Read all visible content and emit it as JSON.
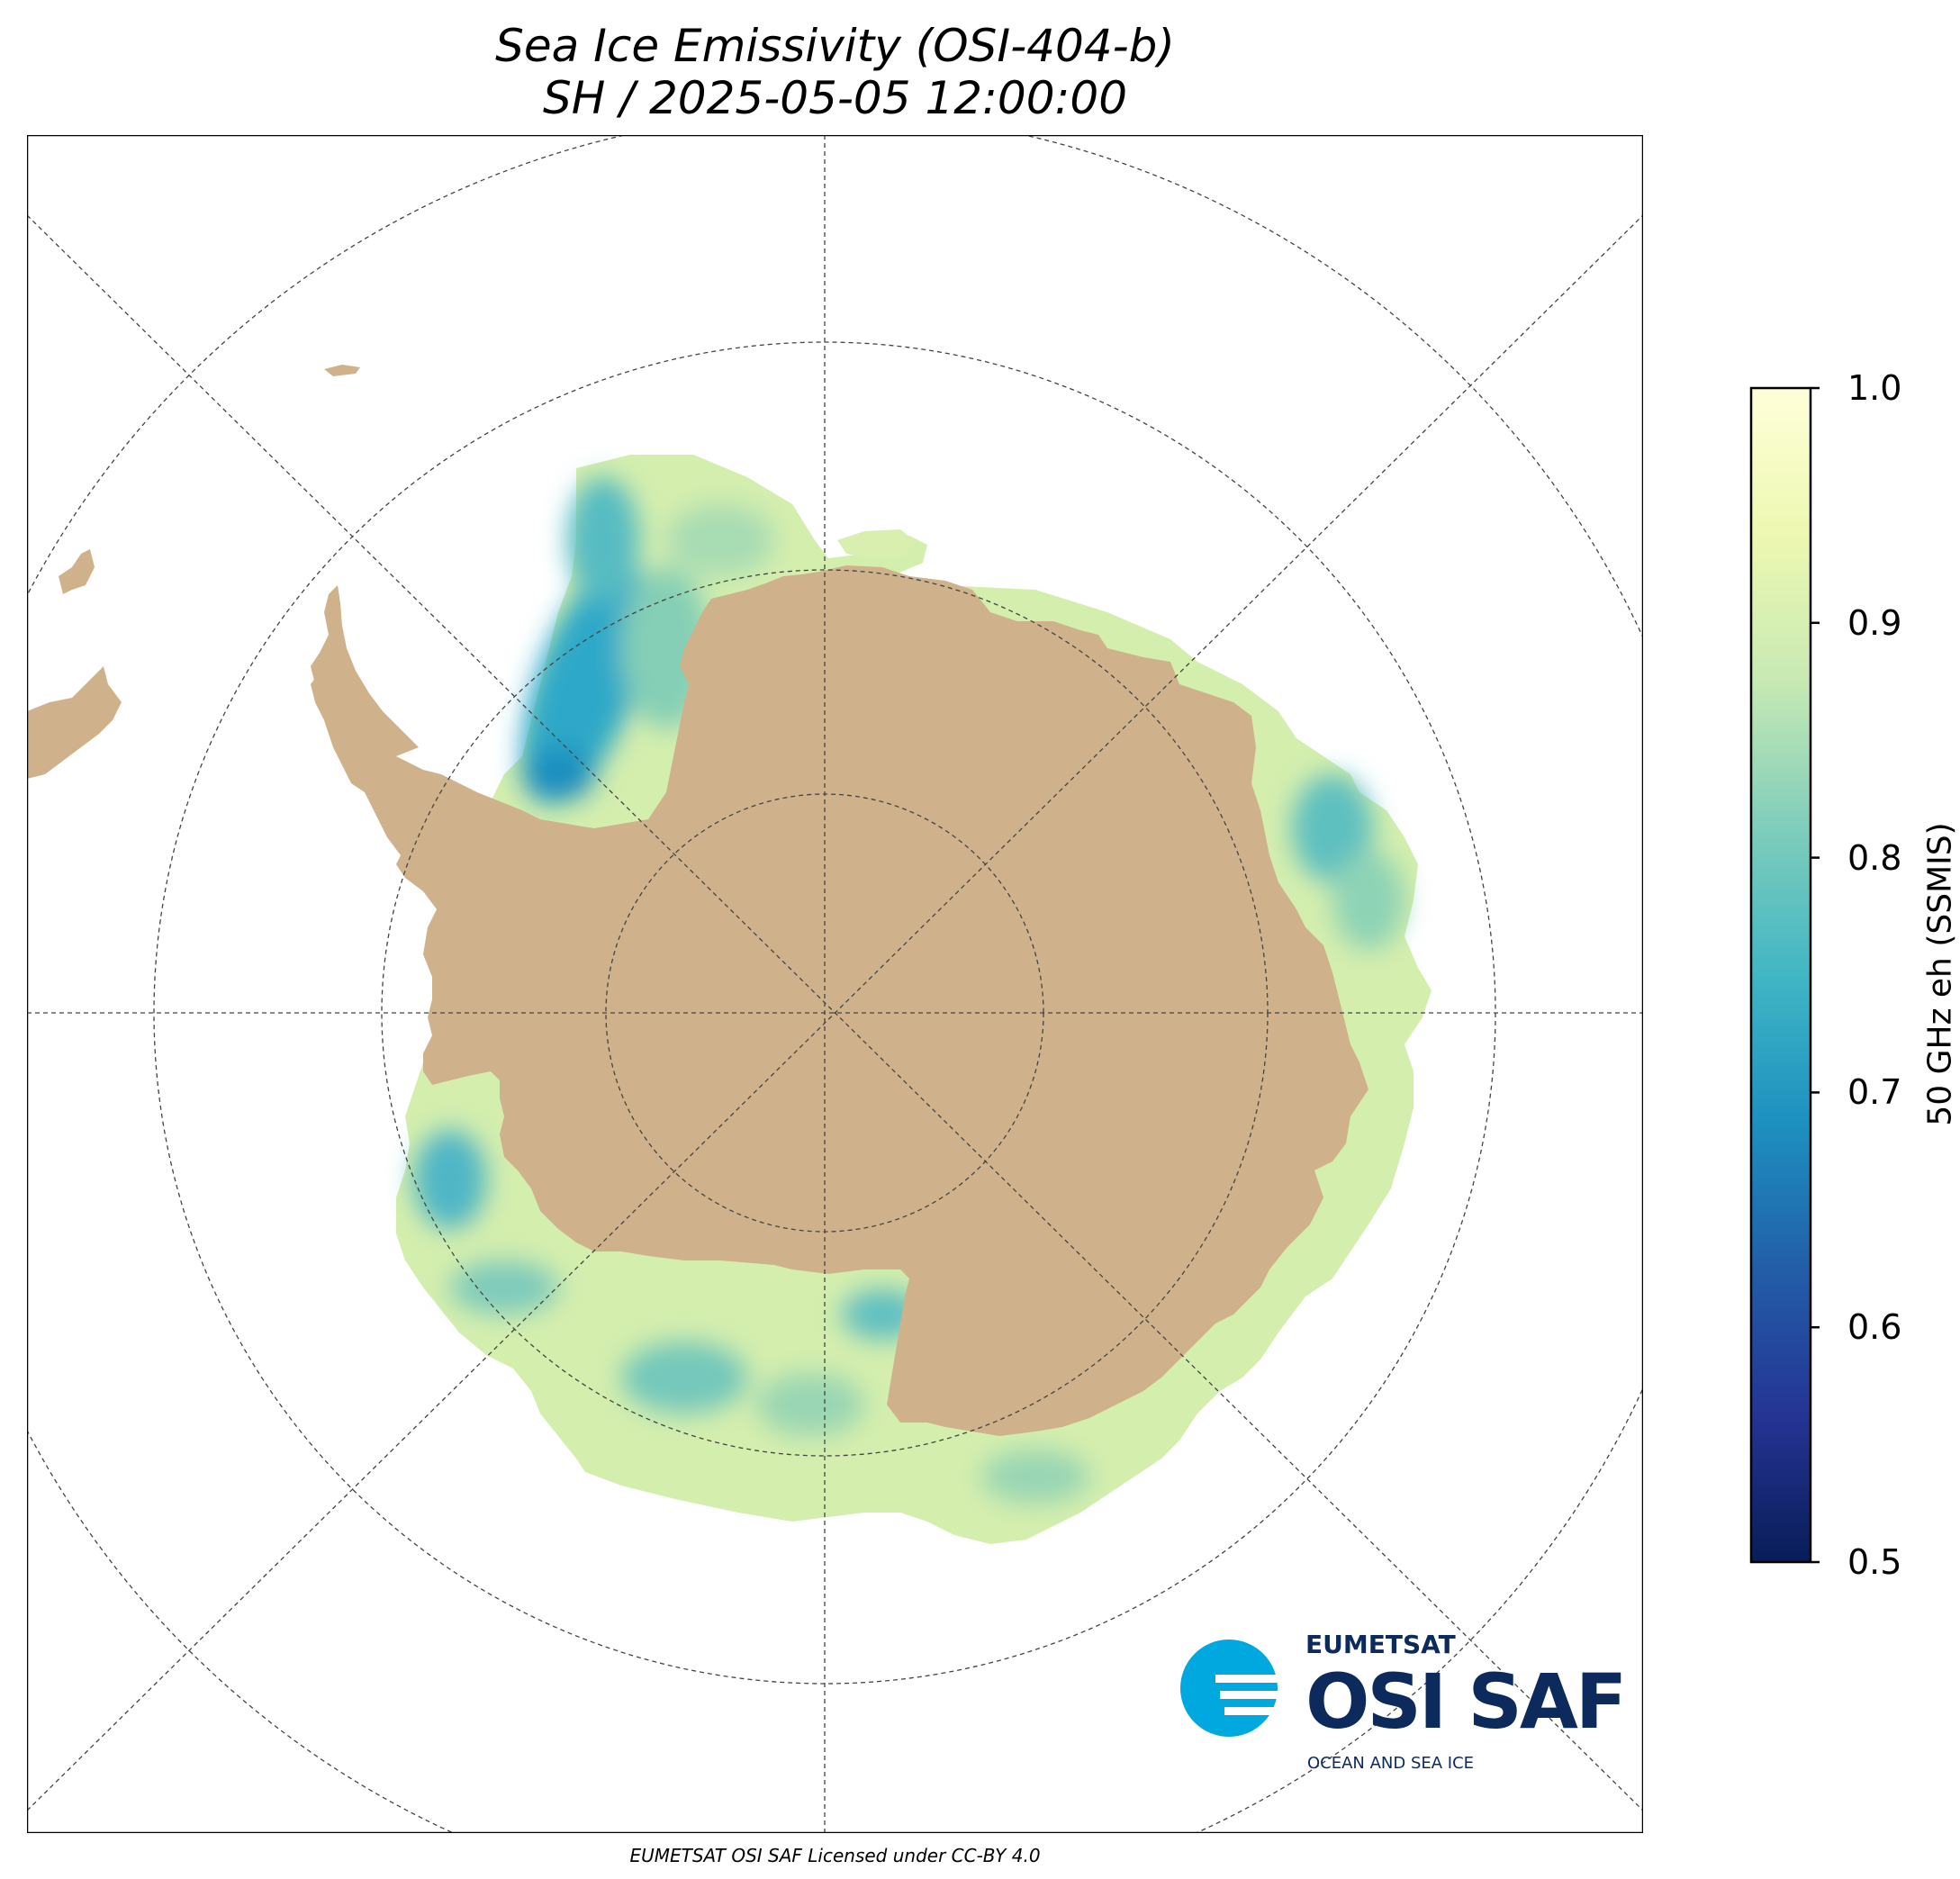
{
  "title_line1": "Sea Ice Emissivity (OSI-404-b)",
  "title_line2": "SH / 2025-05-05 12:00:00",
  "credit": "EUMETSAT OSI SAF Licensed under CC-BY 4.0",
  "colorbar": {
    "label": "50 GHz eh (SSMIS)",
    "min": 0.5,
    "max": 1.0,
    "ticks": [
      "1.0",
      "0.9",
      "0.8",
      "0.7",
      "0.6",
      "0.5"
    ],
    "colormap": "YlGnBu_r",
    "colors": [
      "#081d58",
      "#253494",
      "#225ea8",
      "#1d91c0",
      "#41b6c4",
      "#7fcdbb",
      "#c7e9b4",
      "#edf8b1",
      "#ffffd9"
    ]
  },
  "map": {
    "projection": "south polar stereographic",
    "hemisphere": "SH",
    "land_color": "#cfb28c",
    "ocean_color": "#ffffff",
    "graticule": "dashed gray lines, meridians every 45°, latitude circles"
  },
  "logo": {
    "top": "EUMETSAT",
    "main": "OSI SAF",
    "sub": "OCEAN AND SEA ICE",
    "brand_dark": "#0c2a5b",
    "brand_light": "#00a8e0"
  }
}
